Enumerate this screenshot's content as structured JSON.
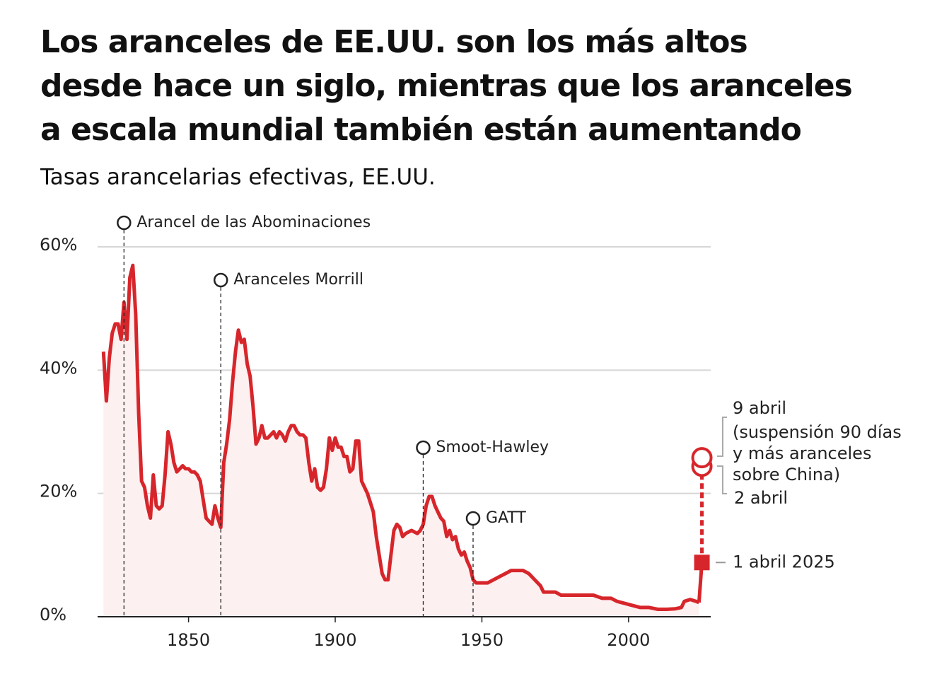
{
  "chart_data": {
    "type": "line",
    "title": [
      "Los aranceles de EE.UU. son los más altos",
      "desde hace un siglo, mientras que los aranceles",
      "a escala mundial también están aumentando"
    ],
    "subtitle": "Tasas arancelarias efectivas, EE.UU.",
    "xlim": [
      1819,
      2028
    ],
    "ylim": [
      0,
      62
    ],
    "xticks": [
      1850,
      1900,
      1950,
      2000
    ],
    "yticks": [
      {
        "value": 0,
        "label": "0%"
      },
      {
        "value": 20,
        "label": "20%"
      },
      {
        "value": 40,
        "label": "40%"
      },
      {
        "value": 60,
        "label": "60%"
      }
    ],
    "grid": true,
    "series": [
      {
        "color": "#d7262b",
        "x": [
          1821,
          1822,
          1823,
          1824,
          1825,
          1826,
          1827,
          1828,
          1829,
          1830,
          1831,
          1832,
          1833,
          1834,
          1835,
          1836,
          1837,
          1838,
          1839,
          1840,
          1841,
          1842,
          1843,
          1844,
          1845,
          1846,
          1847,
          1848,
          1849,
          1850,
          1851,
          1852,
          1853,
          1854,
          1855,
          1856,
          1857,
          1858,
          1859,
          1860,
          1861,
          1862,
          1863,
          1864,
          1865,
          1866,
          1867,
          1868,
          1869,
          1870,
          1871,
          1872,
          1873,
          1874,
          1875,
          1876,
          1877,
          1878,
          1879,
          1880,
          1881,
          1882,
          1883,
          1884,
          1885,
          1886,
          1887,
          1888,
          1889,
          1890,
          1891,
          1892,
          1893,
          1894,
          1895,
          1896,
          1897,
          1898,
          1899,
          1900,
          1901,
          1902,
          1903,
          1904,
          1905,
          1906,
          1907,
          1908,
          1909,
          1910,
          1911,
          1912,
          1913,
          1914,
          1915,
          1916,
          1917,
          1918,
          1919,
          1920,
          1921,
          1922,
          1923,
          1924,
          1926,
          1928,
          1929,
          1930,
          1931,
          1932,
          1933,
          1934,
          1935,
          1936,
          1937,
          1938,
          1939,
          1940,
          1941,
          1942,
          1943,
          1944,
          1945,
          1946,
          1947,
          1948,
          1950,
          1952,
          1954,
          1956,
          1958,
          1960,
          1962,
          1964,
          1966,
          1968,
          1970,
          1971,
          1973,
          1975,
          1977,
          1979,
          1982,
          1985,
          1988,
          1991,
          1994,
          1996,
          2000,
          2004,
          2007,
          2010,
          2013,
          2016,
          2018,
          2019,
          2021,
          2023,
          2024
        ],
        "values": [
          43,
          35,
          42,
          46,
          47.5,
          47.5,
          45,
          51,
          45,
          55,
          57,
          49,
          33,
          22,
          21,
          18,
          16,
          23,
          18,
          17.5,
          18,
          23,
          30,
          28,
          25,
          23.5,
          24,
          24.5,
          24,
          24,
          23.5,
          23.5,
          23,
          22,
          19,
          16,
          15.5,
          15,
          18,
          16,
          14.5,
          25,
          28,
          32,
          38,
          43,
          46.5,
          44.5,
          45,
          41,
          39,
          34,
          28,
          29,
          31,
          29,
          29,
          29.5,
          30,
          29,
          30,
          29.5,
          28.5,
          30,
          31,
          31,
          30,
          29.5,
          29.5,
          29,
          25,
          22,
          24,
          21,
          20.5,
          21,
          24,
          29,
          27,
          29,
          27.5,
          27.5,
          26,
          26,
          23.5,
          24,
          28.5,
          28.5,
          22,
          21,
          20,
          18.5,
          17,
          13,
          10,
          7,
          6,
          6,
          10,
          14,
          15,
          14.5,
          13,
          13.5,
          14,
          13.5,
          14,
          15,
          18,
          19.5,
          19.5,
          18,
          17,
          16,
          15.5,
          13,
          14,
          12.5,
          13,
          11,
          10,
          10.5,
          9,
          8,
          6,
          5.5,
          5.5,
          5.5,
          6,
          6.5,
          7,
          7.5,
          7.5,
          7.5,
          7,
          6,
          5,
          4,
          4,
          4,
          3.5,
          3.5,
          3.5,
          3.5,
          3.5,
          3,
          3,
          2.5,
          2,
          1.5,
          1.5,
          1.2,
          1.2,
          1.3,
          1.5,
          2.5,
          2.8,
          2.5,
          2.3
        ]
      }
    ],
    "events": [
      {
        "label": "Arancel de las Abominaciones",
        "x": 1828
      },
      {
        "label": "Aranceles Morrill",
        "x": 1861
      },
      {
        "label": "Smoot-Hawley",
        "x": 1930
      },
      {
        "label": "GATT",
        "x": 1947
      }
    ],
    "markers": [
      {
        "label": "1 abril 2025",
        "x": 2025,
        "value": 8.8
      },
      {
        "label": "2 abril",
        "x": 2025,
        "value": 24.4
      },
      {
        "label": "9 abril",
        "note": [
          "(suspensión 90 días",
          "y más aranceles",
          "sobre China)"
        ],
        "x": 2025,
        "value": 25.8
      }
    ]
  }
}
